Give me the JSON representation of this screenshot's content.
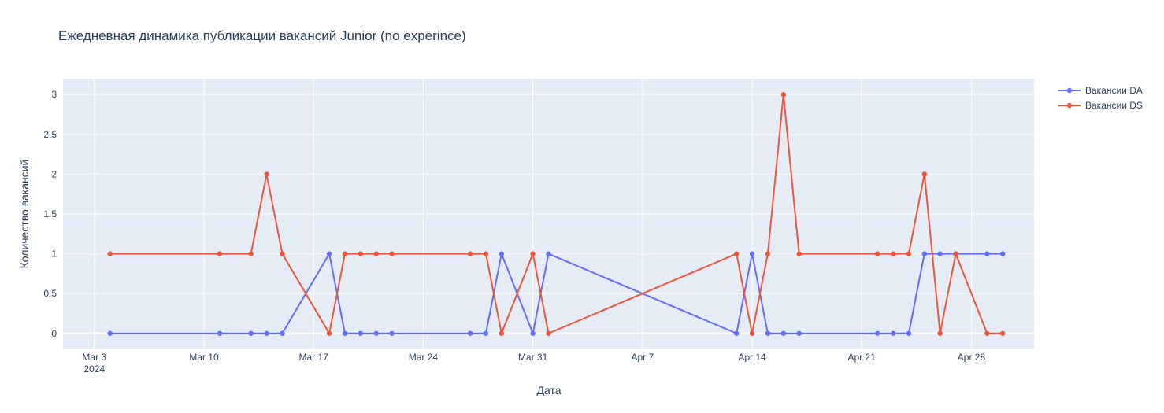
{
  "chart_data": {
    "type": "line",
    "title": "Ежедневная динамика публикации вакансий Junior (no experince)",
    "xlabel": "Дата",
    "ylabel": "Количество вакансий",
    "ylim": [
      -0.2,
      3.2
    ],
    "xlim": [
      "2024-03-01",
      "2024-05-02"
    ],
    "x_ticks": [
      {
        "date": "2024-03-03",
        "label": "Mar 3",
        "sub": "2024"
      },
      {
        "date": "2024-03-10",
        "label": "Mar 10"
      },
      {
        "date": "2024-03-17",
        "label": "Mar 17"
      },
      {
        "date": "2024-03-24",
        "label": "Mar 24"
      },
      {
        "date": "2024-03-31",
        "label": "Mar 31"
      },
      {
        "date": "2024-04-07",
        "label": "Apr 7"
      },
      {
        "date": "2024-04-14",
        "label": "Apr 14"
      },
      {
        "date": "2024-04-21",
        "label": "Apr 21"
      },
      {
        "date": "2024-04-28",
        "label": "Apr 28"
      }
    ],
    "y_ticks": [
      {
        "value": 0,
        "label": "0"
      },
      {
        "value": 0.5,
        "label": "0.5"
      },
      {
        "value": 1,
        "label": "1"
      },
      {
        "value": 1.5,
        "label": "1.5"
      },
      {
        "value": 2,
        "label": "2"
      },
      {
        "value": 2.5,
        "label": "2.5"
      },
      {
        "value": 3,
        "label": "3"
      }
    ],
    "grid": true,
    "legend_position": "top-right",
    "x": [
      "2024-03-04",
      "2024-03-11",
      "2024-03-13",
      "2024-03-14",
      "2024-03-15",
      "2024-03-18",
      "2024-03-19",
      "2024-03-20",
      "2024-03-21",
      "2024-03-22",
      "2024-03-27",
      "2024-03-28",
      "2024-03-29",
      "2024-03-31",
      "2024-04-01",
      "2024-04-13",
      "2024-04-14",
      "2024-04-15",
      "2024-04-16",
      "2024-04-17",
      "2024-04-22",
      "2024-04-23",
      "2024-04-24",
      "2024-04-25",
      "2024-04-26",
      "2024-04-27",
      "2024-04-29",
      "2024-04-30"
    ],
    "series": [
      {
        "name": "Вакансии DA",
        "color": "#636efa",
        "values": [
          0,
          0,
          0,
          0,
          0,
          1,
          0,
          0,
          0,
          0,
          0,
          0,
          1,
          0,
          1,
          0,
          1,
          0,
          0,
          0,
          0,
          0,
          0,
          1,
          1,
          1,
          1,
          1
        ]
      },
      {
        "name": "Вакансии DS",
        "color": "#ef553b",
        "values": [
          1,
          1,
          1,
          2,
          1,
          0,
          1,
          1,
          1,
          1,
          1,
          1,
          0,
          1,
          0,
          1,
          0,
          1,
          3,
          1,
          1,
          1,
          1,
          2,
          0,
          1,
          0,
          0
        ]
      }
    ]
  }
}
